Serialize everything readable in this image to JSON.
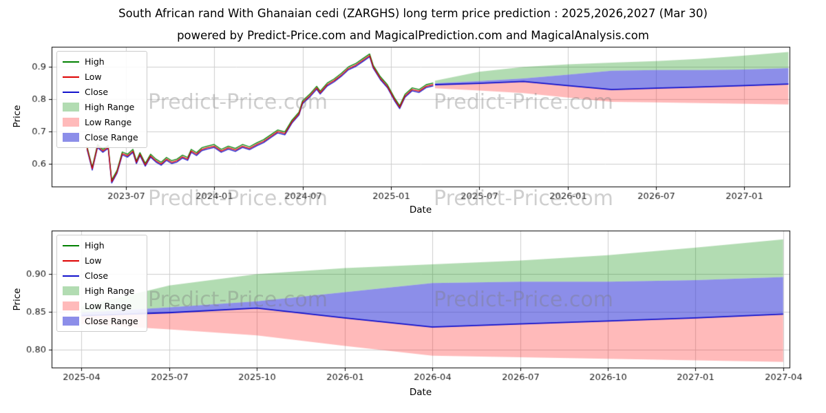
{
  "page": {
    "title": "South African rand With Ghanaian cedi (ZARGHS) long term price prediction : 2025,2026,2027 (Mar 30)",
    "subtitle": "powered by Predict-Price.com and MagicalPrediction.com and MagicalAnalysis.com",
    "watermark": "Predict-Price.com"
  },
  "colors": {
    "high_line": "#008000",
    "low_line": "#dd0000",
    "close_line": "#1111cc",
    "high_range": "rgba(0,140,0,0.30)",
    "low_range": "rgba(255,40,40,0.32)",
    "close_range": "rgba(45,50,215,0.55)",
    "grid": "#cccccc",
    "axis": "#000000",
    "tick_text": "#1a1a1a"
  },
  "legend": {
    "items": [
      {
        "label": "High",
        "type": "line",
        "color": "#008000"
      },
      {
        "label": "Low",
        "type": "line",
        "color": "#dd0000"
      },
      {
        "label": "Close",
        "type": "line",
        "color": "#1111cc"
      },
      {
        "label": "High Range",
        "type": "patch",
        "color": "rgba(0,140,0,0.30)"
      },
      {
        "label": "Low Range",
        "type": "patch",
        "color": "rgba(255,40,40,0.32)"
      },
      {
        "label": "Close Range",
        "type": "patch",
        "color": "rgba(45,50,215,0.55)"
      }
    ]
  },
  "chart_data": [
    {
      "type": "line",
      "title": "",
      "xlabel": "Date",
      "ylabel": "Price",
      "grid": true,
      "legend_position": "upper left",
      "xlim": [
        2023.08,
        2027.26
      ],
      "ylim": [
        0.528,
        0.962
      ],
      "xticks": [
        {
          "v": 2023.5,
          "label": "2023-07"
        },
        {
          "v": 2024.0,
          "label": "2024-01"
        },
        {
          "v": 2024.5,
          "label": "2024-07"
        },
        {
          "v": 2025.0,
          "label": "2025-01"
        },
        {
          "v": 2025.5,
          "label": "2025-07"
        },
        {
          "v": 2026.0,
          "label": "2026-01"
        },
        {
          "v": 2026.5,
          "label": "2026-07"
        },
        {
          "v": 2027.0,
          "label": "2027-01"
        }
      ],
      "yticks": [
        {
          "v": 0.6,
          "label": "0.6"
        },
        {
          "v": 0.7,
          "label": "0.7"
        },
        {
          "v": 0.8,
          "label": "0.8"
        },
        {
          "v": 0.9,
          "label": "0.9"
        }
      ],
      "history": {
        "note": "High, Low and Close series overlap at this scale; close values listed, small display offsets used for the overlapping lines",
        "x": [
          2023.28,
          2023.31,
          2023.34,
          2023.37,
          2023.4,
          2023.42,
          2023.45,
          2023.48,
          2023.51,
          2023.54,
          2023.56,
          2023.58,
          2023.61,
          2023.64,
          2023.67,
          2023.7,
          2023.73,
          2023.76,
          2023.79,
          2023.82,
          2023.85,
          2023.87,
          2023.9,
          2023.93,
          2023.96,
          2024.0,
          2024.04,
          2024.08,
          2024.12,
          2024.16,
          2024.2,
          2024.24,
          2024.28,
          2024.32,
          2024.36,
          2024.4,
          2024.44,
          2024.48,
          2024.5,
          2024.54,
          2024.58,
          2024.6,
          2024.64,
          2024.68,
          2024.72,
          2024.76,
          2024.8,
          2024.84,
          2024.88,
          2024.9,
          2024.94,
          2024.98,
          2025.02,
          2025.05,
          2025.08,
          2025.12,
          2025.16,
          2025.2,
          2025.24
        ],
        "close": [
          0.65,
          0.585,
          0.655,
          0.64,
          0.652,
          0.545,
          0.575,
          0.632,
          0.625,
          0.64,
          0.605,
          0.63,
          0.597,
          0.625,
          0.61,
          0.6,
          0.615,
          0.605,
          0.61,
          0.622,
          0.615,
          0.64,
          0.63,
          0.645,
          0.65,
          0.655,
          0.64,
          0.65,
          0.643,
          0.655,
          0.648,
          0.66,
          0.67,
          0.685,
          0.7,
          0.694,
          0.73,
          0.755,
          0.79,
          0.81,
          0.835,
          0.82,
          0.845,
          0.858,
          0.875,
          0.895,
          0.905,
          0.92,
          0.935,
          0.9,
          0.865,
          0.84,
          0.8,
          0.775,
          0.81,
          0.83,
          0.825,
          0.84,
          0.845
        ],
        "display_offsets": {
          "high": 0.005,
          "close": -0.004,
          "low": 0
        }
      },
      "prediction": {
        "x": [
          2025.25,
          2025.5,
          2025.75,
          2026.0,
          2026.25,
          2026.5,
          2026.75,
          2027.0,
          2027.25
        ],
        "high_top": [
          0.857,
          0.885,
          0.9,
          0.908,
          0.913,
          0.918,
          0.925,
          0.935,
          0.946
        ],
        "close_top": [
          0.849,
          0.856,
          0.864,
          0.876,
          0.888,
          0.89,
          0.89,
          0.892,
          0.896
        ],
        "close": [
          0.845,
          0.849,
          0.855,
          0.842,
          0.83,
          0.834,
          0.838,
          0.842,
          0.847
        ],
        "low_bottom": [
          0.834,
          0.827,
          0.819,
          0.805,
          0.792,
          0.79,
          0.788,
          0.786,
          0.784
        ]
      }
    },
    {
      "type": "line",
      "title": "",
      "xlabel": "Date",
      "ylabel": "Price",
      "grid": true,
      "legend_position": "upper left",
      "xlim": [
        2025.165,
        2027.27
      ],
      "ylim": [
        0.7755,
        0.9575
      ],
      "xticks": [
        {
          "v": 2025.25,
          "label": "2025-04"
        },
        {
          "v": 2025.5,
          "label": "2025-07"
        },
        {
          "v": 2025.75,
          "label": "2025-10"
        },
        {
          "v": 2026.0,
          "label": "2026-01"
        },
        {
          "v": 2026.25,
          "label": "2026-04"
        },
        {
          "v": 2026.5,
          "label": "2026-07"
        },
        {
          "v": 2026.75,
          "label": "2026-10"
        },
        {
          "v": 2027.0,
          "label": "2027-01"
        },
        {
          "v": 2027.25,
          "label": "2027-04"
        }
      ],
      "yticks": [
        {
          "v": 0.8,
          "label": "0.80"
        },
        {
          "v": 0.85,
          "label": "0.85"
        },
        {
          "v": 0.9,
          "label": "0.90"
        }
      ],
      "prediction": {
        "x": [
          2025.25,
          2025.5,
          2025.75,
          2026.0,
          2026.25,
          2026.5,
          2026.75,
          2027.0,
          2027.25
        ],
        "high_top": [
          0.857,
          0.885,
          0.9,
          0.908,
          0.913,
          0.918,
          0.925,
          0.935,
          0.946
        ],
        "close_top": [
          0.849,
          0.856,
          0.864,
          0.876,
          0.888,
          0.89,
          0.89,
          0.892,
          0.896
        ],
        "close": [
          0.845,
          0.849,
          0.855,
          0.842,
          0.83,
          0.834,
          0.838,
          0.842,
          0.847
        ],
        "low_bottom": [
          0.834,
          0.827,
          0.819,
          0.805,
          0.792,
          0.79,
          0.788,
          0.786,
          0.784
        ]
      }
    }
  ]
}
